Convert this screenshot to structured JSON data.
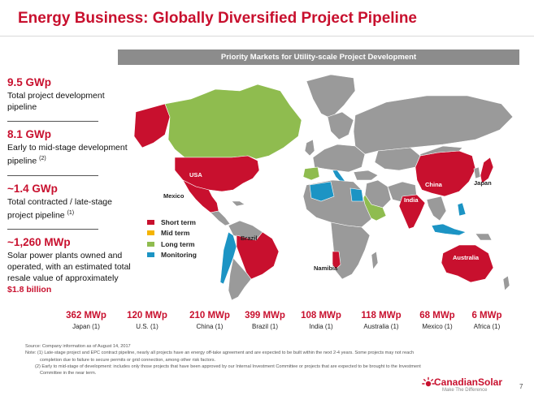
{
  "title": "Energy Business: Globally Diversified Project Pipeline",
  "map_header": "Priority Markets for Utility-scale Project Development",
  "stats": [
    {
      "value": "9.5 GWp",
      "desc": "Total project development pipeline"
    },
    {
      "value": "8.1 GWp",
      "desc": "Early to mid-stage development pipeline",
      "note": "(2)"
    },
    {
      "value": "~1.4 GWp",
      "desc": "Total contracted / late-stage project pipeline",
      "note": "(1)"
    },
    {
      "value": "~1,260 MWp",
      "desc": "Solar power plants owned and operated, with an estimated total resale value of approximately",
      "highlight": "$1.8 billion"
    }
  ],
  "legend": [
    {
      "label": "Short term",
      "color": "#c8102e"
    },
    {
      "label": "Mid term",
      "color": "#f5b400"
    },
    {
      "label": "Long term",
      "color": "#8fbc4f"
    },
    {
      "label": "Monitoring",
      "color": "#1c94c4"
    }
  ],
  "country_labels": {
    "usa": "USA",
    "mexico": "Mexico",
    "brazil": "Brazil",
    "namibia": "Namibia",
    "china": "China",
    "india": "India",
    "japan": "Japan",
    "australia": "Australia"
  },
  "pipeline": [
    {
      "value": "362 MWp",
      "label": "Japan",
      "note": "(1)"
    },
    {
      "value": "120 MWp",
      "label": "U.S.",
      "note": "(1)"
    },
    {
      "value": "210 MWp",
      "label": "China",
      "note": "(1)"
    },
    {
      "value": "399 MWp",
      "label": "Brazil",
      "note": "(1)"
    },
    {
      "value": "108 MWp",
      "label": "India",
      "note": "(1)"
    },
    {
      "value": "118 MWp",
      "label": "Australia",
      "note": "(1)"
    },
    {
      "value": "68 MWp",
      "label": "Mexico",
      "note": "(1)"
    },
    {
      "value": "6 MWp",
      "label": "Africa",
      "note": "(1)"
    }
  ],
  "notes": {
    "source": "Source: Company information as of August 14, 2017",
    "note1": "Note: (1) Late-stage project and EPC contract pipeline, nearly all projects have an energy off-take agreement and are expected to be built within the next 2-4 years. Some projects may not reach",
    "note1b": "completion due to failure to secure permits or grid connection, among other risk factors.",
    "note2": "(2) Early to mid-stage of development: includes  only  those projects that have been approved by our Internal Investment Committee or projects that are expected to be brought to the Investment",
    "note2b": "Committee in the near term."
  },
  "logo": {
    "name": "CanadianSolar",
    "tagline": "Make The Difference"
  },
  "page_number": "7"
}
